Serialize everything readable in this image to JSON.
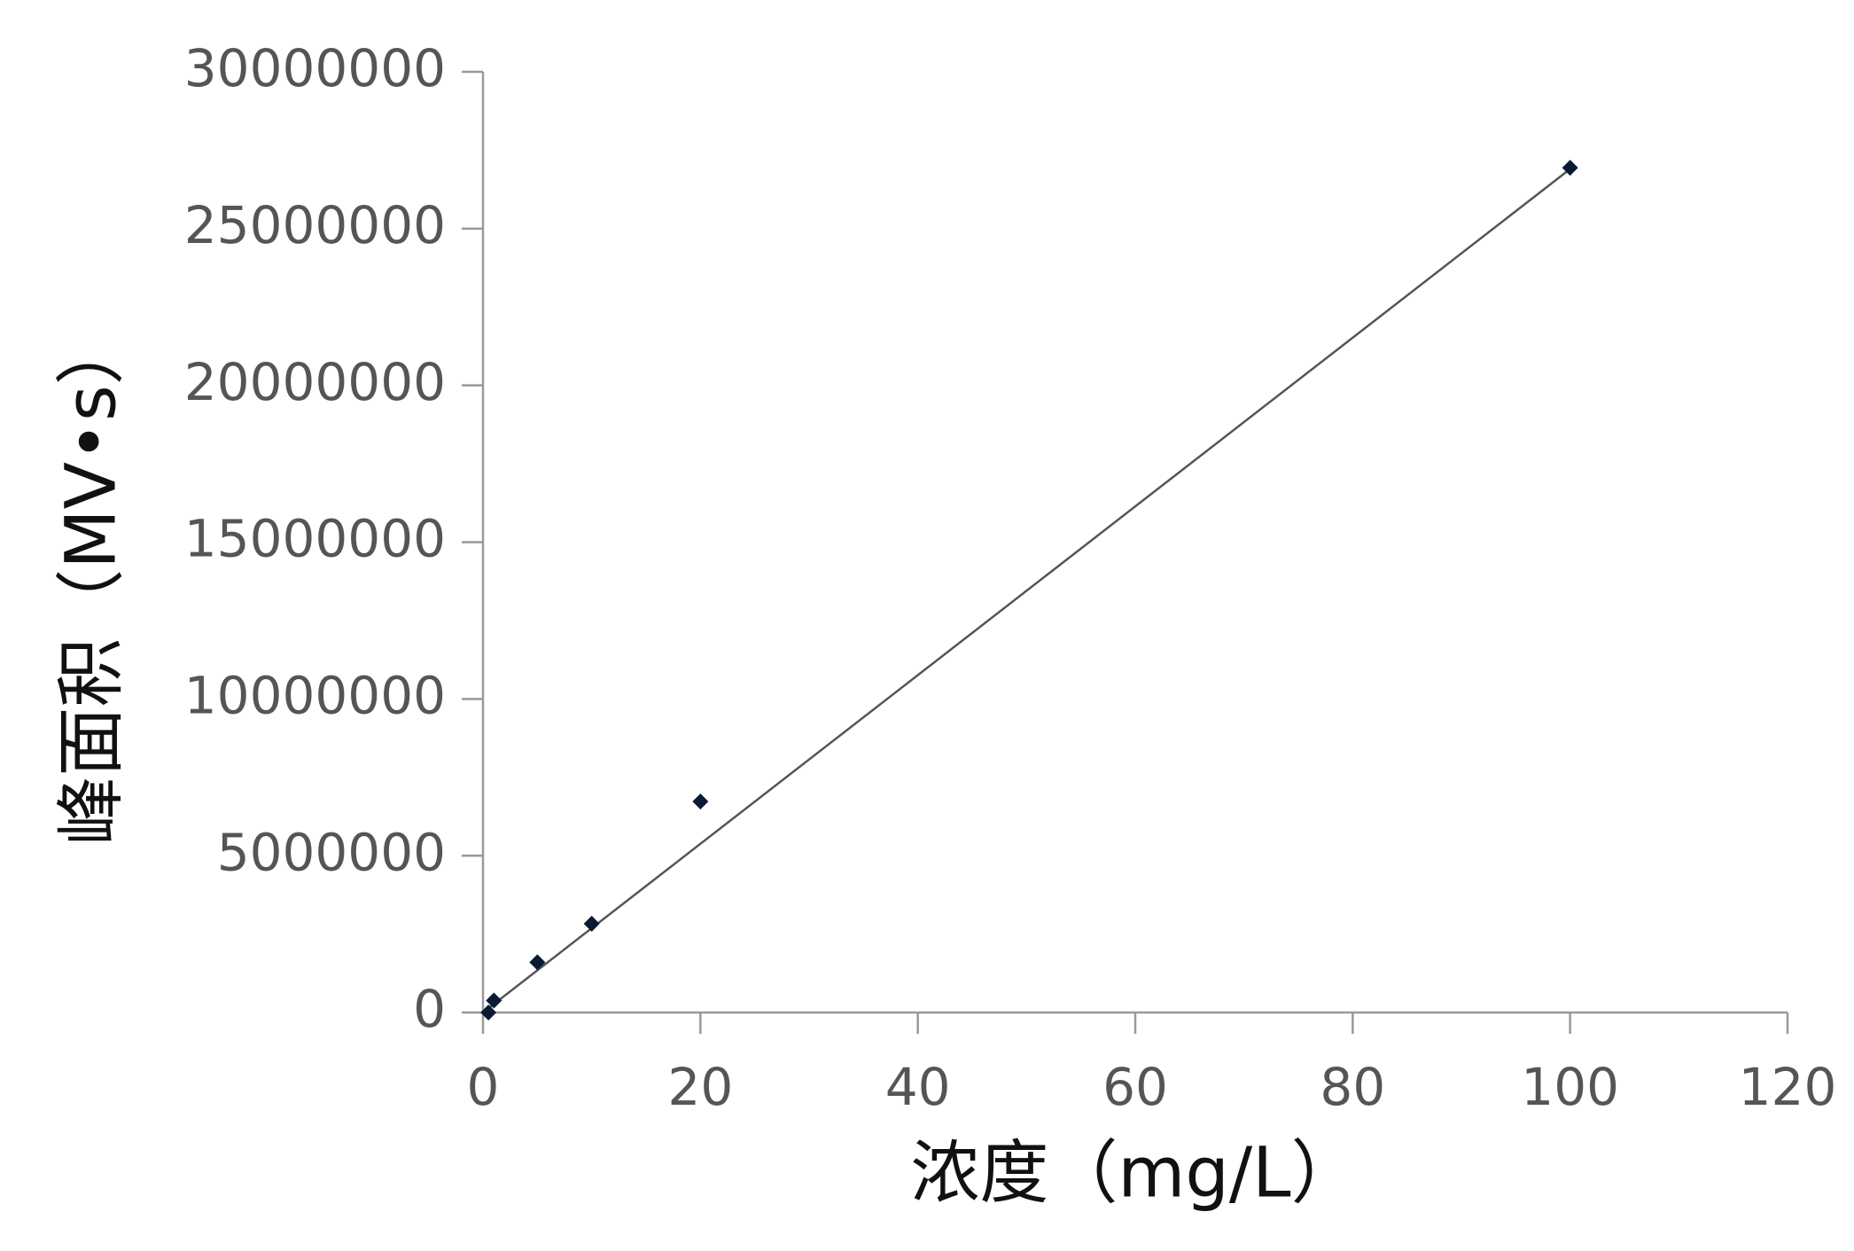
{
  "chart_data": {
    "type": "scatter",
    "x_label": "浓度（mg/L）",
    "y_label": "峰面积（MV•s）",
    "series": [
      {
        "x": [
          0.5,
          1,
          5,
          10,
          20,
          100
        ],
        "values": [
          0,
          380000,
          1600000,
          2830000,
          6730000,
          26940000
        ],
        "color": "#0a1a33"
      }
    ],
    "trendline": {
      "x": [
        0,
        100
      ],
      "values": [
        0,
        26900000
      ],
      "color": "#555555"
    },
    "xlim": [
      0,
      120
    ],
    "xticks": [
      0,
      20,
      40,
      60,
      80,
      100,
      120
    ],
    "ylim": [
      0,
      30000000
    ],
    "yticks": [
      0,
      5000000,
      10000000,
      15000000,
      20000000,
      25000000,
      30000000
    ]
  }
}
